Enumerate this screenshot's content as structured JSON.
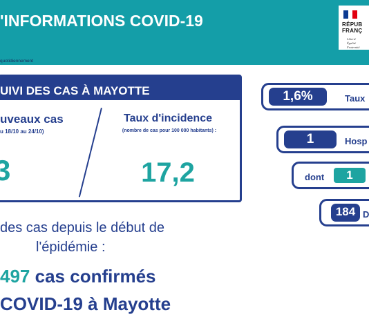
{
  "header": {
    "title": "'INFORMATIONS COVID-19",
    "subtitle": "quotidiennement",
    "logo": {
      "line1": "RÉPUB",
      "line2": "FRANÇ",
      "motto1": "Liberté",
      "motto2": "Égalité",
      "motto3": "Fraternité"
    }
  },
  "panel": {
    "title": "UIVI DES CAS À MAYOTTE",
    "left": {
      "label": "uveaux cas",
      "period": "u 18/10 au 24/10)",
      "value": "3"
    },
    "right": {
      "label": "Taux d'incidence",
      "sublabel": "(nombre de cas pour 100 000 habitants) :",
      "value": "17,2"
    }
  },
  "summary": {
    "line1": "des cas depuis le début de",
    "line2": "l'épidémie :",
    "total_number": "497",
    "total_words": "cas confirmés",
    "disease_line": "COVID-19 à Mayotte"
  },
  "kpis": [
    {
      "value": "1,6%",
      "label": "Taux"
    },
    {
      "value": "1",
      "label": "Hosp"
    },
    {
      "prefix": "dont",
      "value": "1",
      "label": ""
    },
    {
      "value": "184",
      "label": "D"
    }
  ],
  "colors": {
    "teal": "#149ea8",
    "navy": "#253f8e",
    "value_teal": "#1ea4a1"
  }
}
